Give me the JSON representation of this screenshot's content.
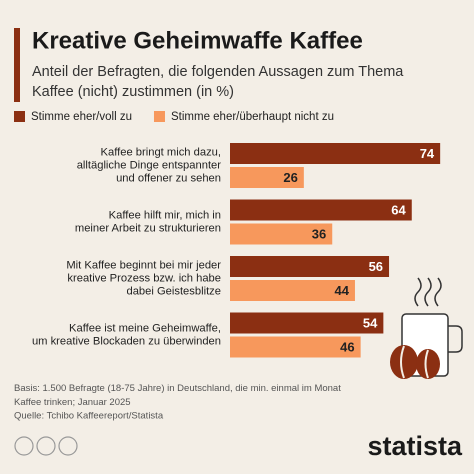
{
  "chart_data": {
    "type": "hbar",
    "title": "Kreative Geheimwaffe Kaffee",
    "subtitle": "Anteil der Befragten, die folgenden Aussagen zum Thema\nKaffee (nicht) zustimmen (in %)",
    "categories": [
      "Kaffee bringt mich dazu,\nalltägliche Dinge entspannter\nund offener zu sehen",
      "Kaffee hilft mir, mich in\nmeiner Arbeit zu strukturieren",
      "Mit Kaffee beginnt bei mir jeder\nkreative Prozess bzw. ich habe\ndabei Geistesblitze",
      "Kaffee ist meine Geheimwaffe,\num kreative Blockaden zu überwinden"
    ],
    "series": [
      {
        "name": "Stimme eher/voll zu",
        "color": "#8b2f12",
        "values": [
          74,
          64,
          56,
          54
        ]
      },
      {
        "name": "Stimme eher/überhaupt nicht zu",
        "color": "#f7985c",
        "values": [
          26,
          36,
          44,
          46
        ]
      }
    ],
    "note": "Basis: 1.500 Befragte (18-75 Jahre) in Deutschland, die min. einmal im Monat\nKaffee trinken; Januar 2025",
    "source": "Quelle: Tchibo Kaffeereport/Statista",
    "brand": "statista"
  }
}
